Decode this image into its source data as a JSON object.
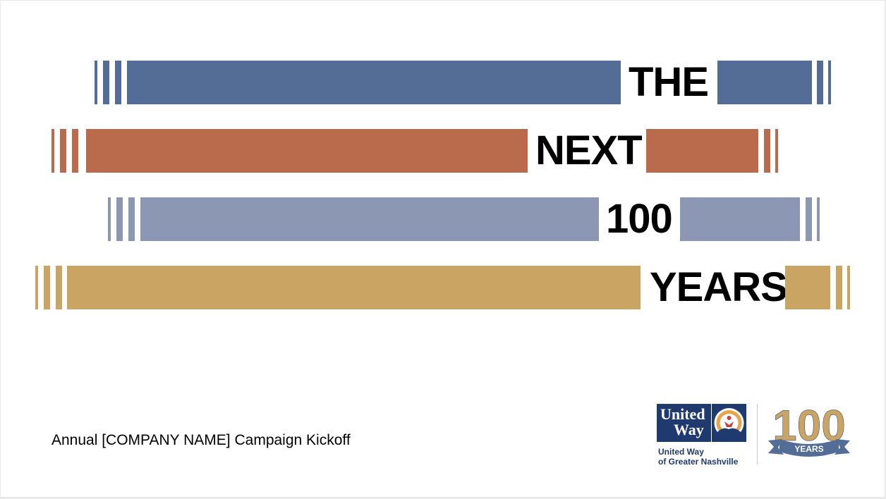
{
  "headline": {
    "words": [
      "THE",
      "NEXT",
      "100",
      "YEARS"
    ]
  },
  "colors": {
    "blue": "#536d96",
    "orange": "#b96b4b",
    "lavender": "#8c98b3",
    "gold": "#c9a463",
    "navy": "#1e3a6e"
  },
  "subtitle": "Annual [COMPANY NAME] Campaign Kickoff",
  "logo": {
    "wordmark_line1": "United",
    "wordmark_line2": "Way",
    "caption_line1": "United Way",
    "caption_line2": "of Greater Nashville",
    "emblem_icon": "hand-person-rainbow-icon",
    "anniversary_number": "100",
    "anniversary_ribbon": "YEARS"
  }
}
